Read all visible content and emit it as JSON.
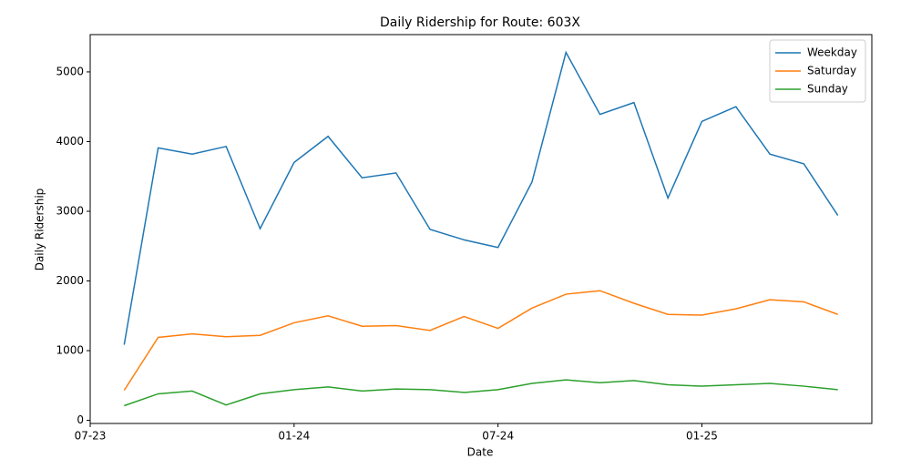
{
  "chart_data": {
    "type": "line",
    "title": "Daily Ridership for Route: 603X",
    "x_label": "Date",
    "y_label": "Daily Ridership",
    "x": [
      "2023-08",
      "2023-09",
      "2023-10",
      "2023-11",
      "2023-12",
      "2024-01",
      "2024-02",
      "2024-03",
      "2024-04",
      "2024-05",
      "2024-06",
      "2024-07",
      "2024-08",
      "2024-09",
      "2024-10",
      "2024-11",
      "2024-12",
      "2025-01",
      "2025-02",
      "2025-03",
      "2025-04",
      "2025-05"
    ],
    "series": [
      {
        "name": "Weekday",
        "color": "#1f77b4",
        "values": [
          1086,
          3910,
          3820,
          3930,
          2750,
          3700,
          4075,
          3480,
          3550,
          2740,
          2590,
          2480,
          3420,
          5280,
          4390,
          4560,
          3190,
          4290,
          4500,
          3820,
          3680,
          2940
        ]
      },
      {
        "name": "Saturday",
        "color": "#ff7f0e",
        "values": [
          430,
          1190,
          1240,
          1200,
          1220,
          1400,
          1500,
          1350,
          1360,
          1290,
          1490,
          1320,
          1610,
          1810,
          1860,
          1680,
          1520,
          1510,
          1600,
          1730,
          1700,
          1520
        ]
      },
      {
        "name": "Sunday",
        "color": "#2ca02c",
        "values": [
          210,
          380,
          420,
          220,
          380,
          440,
          480,
          420,
          450,
          440,
          400,
          440,
          530,
          580,
          540,
          570,
          510,
          490,
          510,
          530,
          490,
          440
        ]
      }
    ],
    "xlim": [
      "2023-07",
      "2025-06"
    ],
    "xticks": [
      {
        "value": "2023-07",
        "label": "07-23"
      },
      {
        "value": "2024-01",
        "label": "01-24"
      },
      {
        "value": "2024-07",
        "label": "07-24"
      },
      {
        "value": "2025-01",
        "label": "01-25"
      }
    ],
    "ylim": [
      -45,
      5535
    ],
    "yticks": [
      0,
      1000,
      2000,
      3000,
      4000,
      5000
    ],
    "grid": false,
    "legend": "upper right"
  }
}
